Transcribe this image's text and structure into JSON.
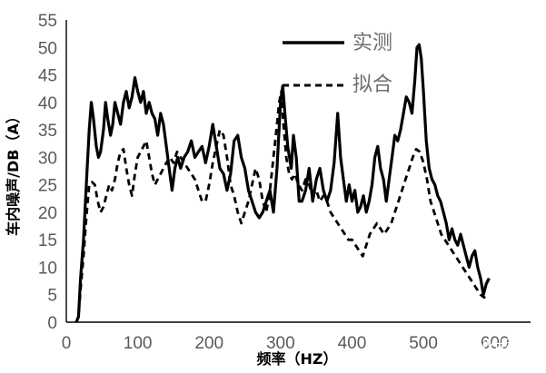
{
  "chart_data": {
    "type": "line",
    "xlabel": "频率（HZ）",
    "ylabel": "车内噪声/DB（A）",
    "xlim": [
      0,
      650
    ],
    "ylim": [
      0,
      55
    ],
    "x_ticks": [
      "0",
      "100",
      "200",
      "300",
      "400",
      "500",
      "600"
    ],
    "y_ticks": [
      "0",
      "5",
      "10",
      "15",
      "20",
      "25",
      "30",
      "35",
      "40",
      "45",
      "50",
      "55"
    ],
    "grid": false,
    "legend_position": "top-center",
    "series": [
      {
        "name": "实测",
        "style": "solid",
        "points": [
          [
            14,
            0
          ],
          [
            17,
            1
          ],
          [
            20,
            8
          ],
          [
            24,
            15
          ],
          [
            28,
            25
          ],
          [
            32,
            35
          ],
          [
            35,
            40
          ],
          [
            38,
            37
          ],
          [
            42,
            32
          ],
          [
            45,
            30
          ],
          [
            48,
            31
          ],
          [
            52,
            35
          ],
          [
            55,
            40
          ],
          [
            58,
            37
          ],
          [
            62,
            34
          ],
          [
            65,
            36
          ],
          [
            68,
            40
          ],
          [
            72,
            38
          ],
          [
            76,
            36
          ],
          [
            80,
            40
          ],
          [
            84,
            42
          ],
          [
            88,
            39
          ],
          [
            92,
            41
          ],
          [
            96,
            44.5
          ],
          [
            100,
            42
          ],
          [
            104,
            40
          ],
          [
            108,
            42
          ],
          [
            112,
            38
          ],
          [
            116,
            40
          ],
          [
            120,
            38
          ],
          [
            124,
            37
          ],
          [
            128,
            34
          ],
          [
            132,
            38
          ],
          [
            136,
            36
          ],
          [
            140,
            32
          ],
          [
            144,
            28
          ],
          [
            148,
            24
          ],
          [
            152,
            28
          ],
          [
            156,
            30
          ],
          [
            160,
            28
          ],
          [
            165,
            30
          ],
          [
            170,
            31
          ],
          [
            175,
            33
          ],
          [
            180,
            30
          ],
          [
            185,
            31
          ],
          [
            190,
            32
          ],
          [
            195,
            29
          ],
          [
            200,
            32
          ],
          [
            205,
            36
          ],
          [
            210,
            32
          ],
          [
            215,
            28
          ],
          [
            220,
            27
          ],
          [
            225,
            24
          ],
          [
            230,
            27
          ],
          [
            235,
            33
          ],
          [
            240,
            34
          ],
          [
            245,
            30
          ],
          [
            250,
            28
          ],
          [
            255,
            24
          ],
          [
            260,
            22
          ],
          [
            265,
            20
          ],
          [
            270,
            19
          ],
          [
            275,
            20
          ],
          [
            280,
            22
          ],
          [
            285,
            24
          ],
          [
            290,
            20
          ],
          [
            295,
            28
          ],
          [
            300,
            40
          ],
          [
            303,
            43
          ],
          [
            306,
            38
          ],
          [
            310,
            32
          ],
          [
            315,
            28
          ],
          [
            318,
            34
          ],
          [
            322,
            30
          ],
          [
            326,
            22
          ],
          [
            330,
            22
          ],
          [
            335,
            24
          ],
          [
            340,
            28
          ],
          [
            345,
            22
          ],
          [
            350,
            26
          ],
          [
            355,
            28
          ],
          [
            360,
            24
          ],
          [
            365,
            22
          ],
          [
            370,
            24
          ],
          [
            375,
            29
          ],
          [
            380,
            38
          ],
          [
            384,
            30
          ],
          [
            388,
            26
          ],
          [
            392,
            22
          ],
          [
            396,
            25
          ],
          [
            400,
            22
          ],
          [
            404,
            24
          ],
          [
            408,
            20
          ],
          [
            412,
            21
          ],
          [
            416,
            23
          ],
          [
            420,
            20
          ],
          [
            424,
            22
          ],
          [
            428,
            25
          ],
          [
            432,
            30
          ],
          [
            436,
            32
          ],
          [
            440,
            28
          ],
          [
            444,
            26
          ],
          [
            448,
            22
          ],
          [
            452,
            26
          ],
          [
            456,
            30
          ],
          [
            460,
            34
          ],
          [
            464,
            33
          ],
          [
            468,
            35
          ],
          [
            472,
            38
          ],
          [
            476,
            41
          ],
          [
            480,
            40
          ],
          [
            484,
            38
          ],
          [
            488,
            44
          ],
          [
            491,
            50
          ],
          [
            494,
            50.5
          ],
          [
            497,
            48
          ],
          [
            500,
            42
          ],
          [
            504,
            33
          ],
          [
            508,
            28
          ],
          [
            512,
            26
          ],
          [
            516,
            25
          ],
          [
            520,
            23
          ],
          [
            524,
            22
          ],
          [
            528,
            20
          ],
          [
            532,
            18
          ],
          [
            536,
            15
          ],
          [
            540,
            17
          ],
          [
            544,
            15
          ],
          [
            548,
            14
          ],
          [
            552,
            16
          ],
          [
            556,
            14
          ],
          [
            560,
            12
          ],
          [
            564,
            10
          ],
          [
            568,
            12
          ],
          [
            572,
            13
          ],
          [
            576,
            10
          ],
          [
            580,
            8
          ],
          [
            584,
            5
          ],
          [
            588,
            7
          ],
          [
            592,
            8
          ]
        ]
      },
      {
        "name": "拟合",
        "style": "dashed",
        "points": [
          [
            14,
            0
          ],
          [
            17,
            1
          ],
          [
            20,
            6
          ],
          [
            24,
            12
          ],
          [
            28,
            19
          ],
          [
            32,
            25
          ],
          [
            36,
            25.5
          ],
          [
            40,
            25
          ],
          [
            44,
            22
          ],
          [
            48,
            20
          ],
          [
            52,
            21
          ],
          [
            56,
            23
          ],
          [
            60,
            25
          ],
          [
            64,
            24
          ],
          [
            68,
            26
          ],
          [
            72,
            29
          ],
          [
            76,
            31
          ],
          [
            80,
            31.5
          ],
          [
            84,
            28
          ],
          [
            88,
            25
          ],
          [
            92,
            23
          ],
          [
            96,
            27
          ],
          [
            100,
            30
          ],
          [
            104,
            31
          ],
          [
            108,
            32
          ],
          [
            112,
            33
          ],
          [
            116,
            30
          ],
          [
            120,
            27
          ],
          [
            124,
            25
          ],
          [
            128,
            26
          ],
          [
            132,
            27
          ],
          [
            136,
            28
          ],
          [
            140,
            29
          ],
          [
            145,
            30
          ],
          [
            150,
            29
          ],
          [
            155,
            31
          ],
          [
            160,
            30
          ],
          [
            165,
            29
          ],
          [
            170,
            28
          ],
          [
            175,
            27
          ],
          [
            180,
            26
          ],
          [
            185,
            24
          ],
          [
            190,
            22
          ],
          [
            195,
            22
          ],
          [
            200,
            25
          ],
          [
            205,
            29
          ],
          [
            210,
            32
          ],
          [
            215,
            35
          ],
          [
            220,
            34
          ],
          [
            225,
            30
          ],
          [
            230,
            25
          ],
          [
            235,
            23
          ],
          [
            240,
            20
          ],
          [
            245,
            18
          ],
          [
            250,
            20
          ],
          [
            255,
            22
          ],
          [
            260,
            25
          ],
          [
            265,
            28
          ],
          [
            270,
            26
          ],
          [
            275,
            22
          ],
          [
            280,
            20
          ],
          [
            285,
            24
          ],
          [
            290,
            30
          ],
          [
            295,
            36
          ],
          [
            298,
            40
          ],
          [
            301,
            42
          ],
          [
            304,
            36
          ],
          [
            308,
            30
          ],
          [
            312,
            27
          ],
          [
            316,
            26
          ],
          [
            320,
            27
          ],
          [
            325,
            25
          ],
          [
            330,
            24
          ],
          [
            335,
            26
          ],
          [
            340,
            25
          ],
          [
            345,
            23
          ],
          [
            350,
            24
          ],
          [
            355,
            22
          ],
          [
            360,
            23
          ],
          [
            365,
            22
          ],
          [
            370,
            20
          ],
          [
            375,
            19
          ],
          [
            380,
            18
          ],
          [
            385,
            17
          ],
          [
            390,
            16
          ],
          [
            395,
            15
          ],
          [
            400,
            15
          ],
          [
            405,
            14
          ],
          [
            410,
            13
          ],
          [
            415,
            12
          ],
          [
            420,
            14
          ],
          [
            425,
            16
          ],
          [
            430,
            17
          ],
          [
            435,
            18
          ],
          [
            440,
            17
          ],
          [
            445,
            16
          ],
          [
            450,
            17
          ],
          [
            455,
            18
          ],
          [
            460,
            20
          ],
          [
            465,
            22
          ],
          [
            470,
            24
          ],
          [
            475,
            26
          ],
          [
            480,
            28
          ],
          [
            485,
            30
          ],
          [
            490,
            31.5
          ],
          [
            495,
            31
          ],
          [
            500,
            29
          ],
          [
            505,
            26
          ],
          [
            510,
            22
          ],
          [
            515,
            20
          ],
          [
            520,
            18
          ],
          [
            525,
            16
          ],
          [
            530,
            15
          ],
          [
            535,
            14
          ],
          [
            540,
            13
          ],
          [
            545,
            12
          ],
          [
            550,
            11
          ],
          [
            555,
            10
          ],
          [
            560,
            9
          ],
          [
            565,
            8
          ],
          [
            570,
            7
          ],
          [
            575,
            6
          ],
          [
            580,
            5
          ],
          [
            585,
            4.5
          ],
          [
            590,
            5
          ]
        ]
      }
    ]
  },
  "watermark": "汽车NVH云讲堂",
  "colors": {
    "line": "#000000",
    "tick": "#5a5a5a",
    "legend": "#6e6e6e"
  }
}
